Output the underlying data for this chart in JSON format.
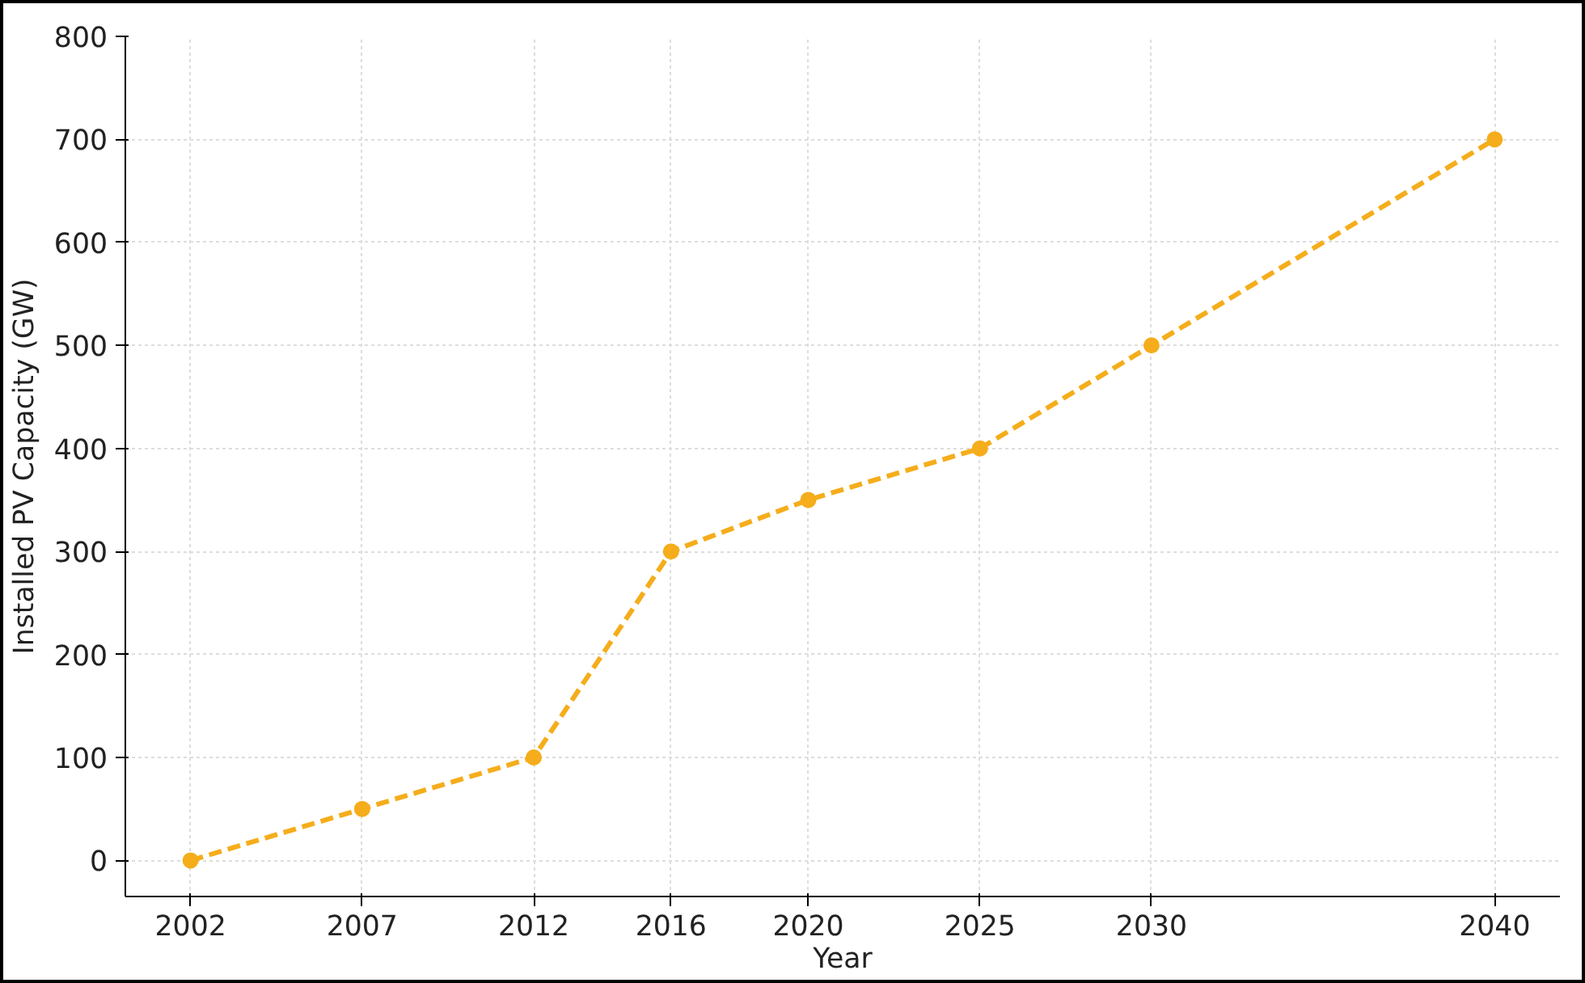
{
  "chart_data": {
    "type": "line",
    "xlabel": "Year",
    "ylabel": "Installed PV Capacity (GW)",
    "x": [
      2002,
      2007,
      2012,
      2016,
      2020,
      2025,
      2030,
      2040
    ],
    "series": [
      {
        "color": "#f5ad1b",
        "values": [
          0,
          50,
          100,
          300,
          350,
          400,
          500,
          700
        ]
      }
    ],
    "xlim": [
      2000.1,
      2041.9
    ],
    "ylim": [
      -35,
      800
    ],
    "xticks": [
      2002,
      2007,
      2012,
      2016,
      2020,
      2025,
      2030,
      2040
    ],
    "yticks": [
      0,
      100,
      200,
      300,
      400,
      500,
      600,
      700,
      800
    ],
    "grid": true,
    "marker": "circle",
    "line_style": "dashed"
  }
}
